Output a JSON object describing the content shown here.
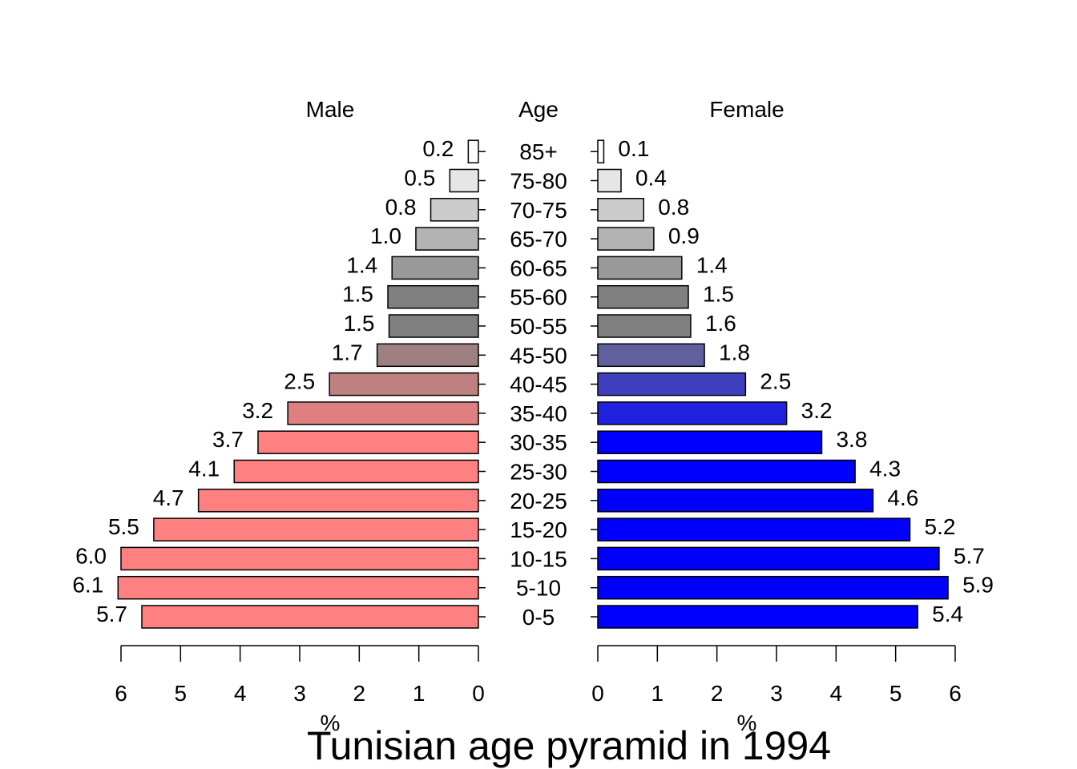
{
  "chart_data": {
    "type": "bar",
    "title": "Tunisian age pyramid in 1994",
    "headers": {
      "left": "Male",
      "center": "Age",
      "right": "Female"
    },
    "xlabel_left": "%",
    "xlabel_right": "%",
    "xlim": [
      0,
      6
    ],
    "xticks": [
      "0",
      "1",
      "2",
      "3",
      "4",
      "5",
      "6"
    ],
    "categories": [
      "0-5",
      "5-10",
      "10-15",
      "15-20",
      "20-25",
      "25-30",
      "30-35",
      "35-40",
      "40-45",
      "45-50",
      "50-55",
      "55-60",
      "60-65",
      "65-70",
      "70-75",
      "75-80",
      "85+"
    ],
    "series": [
      {
        "name": "Male",
        "values": [
          5.65,
          6.05,
          6.0,
          5.45,
          4.7,
          4.1,
          3.7,
          3.2,
          2.5,
          1.7,
          1.5,
          1.52,
          1.45,
          1.05,
          0.8,
          0.48,
          0.17
        ],
        "labels": [
          "5.7",
          "6.1",
          "6.0",
          "5.5",
          "4.7",
          "4.1",
          "3.7",
          "3.2",
          "2.5",
          "1.7",
          "1.5",
          "1.5",
          "1.4",
          "1.0",
          "0.8",
          "0.5",
          "0.2"
        ],
        "colors": [
          "#ff8080",
          "#ff8080",
          "#ff8080",
          "#ff8080",
          "#ff8080",
          "#ff8080",
          "#ff8080",
          "#df8080",
          "#bf8080",
          "#9f8080",
          "#808080",
          "#808080",
          "#999999",
          "#b3b3b3",
          "#cccccc",
          "#e6e6e6",
          "#ffffff"
        ]
      },
      {
        "name": "Female",
        "values": [
          5.37,
          5.88,
          5.73,
          5.24,
          4.62,
          4.32,
          3.76,
          3.17,
          2.48,
          1.79,
          1.56,
          1.52,
          1.41,
          0.94,
          0.77,
          0.39,
          0.1
        ],
        "labels": [
          "5.4",
          "5.9",
          "5.7",
          "5.2",
          "4.6",
          "4.3",
          "3.8",
          "3.2",
          "2.5",
          "1.8",
          "1.6",
          "1.5",
          "1.4",
          "0.9",
          "0.8",
          "0.4",
          "0.1"
        ],
        "colors": [
          "#0000ff",
          "#0000ff",
          "#0000ff",
          "#0000ff",
          "#0000ff",
          "#0000ff",
          "#0000ff",
          "#2020df",
          "#4040bf",
          "#60609f",
          "#808080",
          "#808080",
          "#999999",
          "#b3b3b3",
          "#cccccc",
          "#e6e6e6",
          "#ffffff"
        ]
      }
    ]
  }
}
